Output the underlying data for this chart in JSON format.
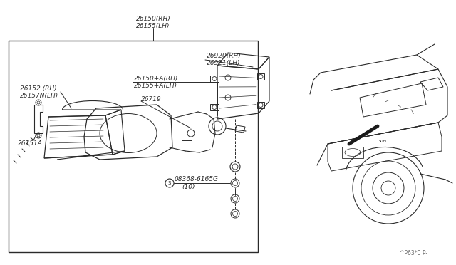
{
  "bg_color": "#ffffff",
  "lc": "#2a2a2a",
  "watermark": "^P63*0 P-",
  "labels": {
    "26150_RH": "26150(RH)",
    "26155_LH": "26155(LH)",
    "26920_RH": "26920(RH)",
    "26921_LH": "26921(LH)",
    "26150A_RH": "26150+A(RH)",
    "26155A_LH": "26155+A(LH)",
    "26152_RH": "26152 (RH)",
    "26157_LH": "26157N(LH)",
    "26719": "26719",
    "26151A": "26151A",
    "08368": "08368-6165G",
    "08368_sub": "(10)"
  },
  "fs": 6.5,
  "sfs": 5.8
}
